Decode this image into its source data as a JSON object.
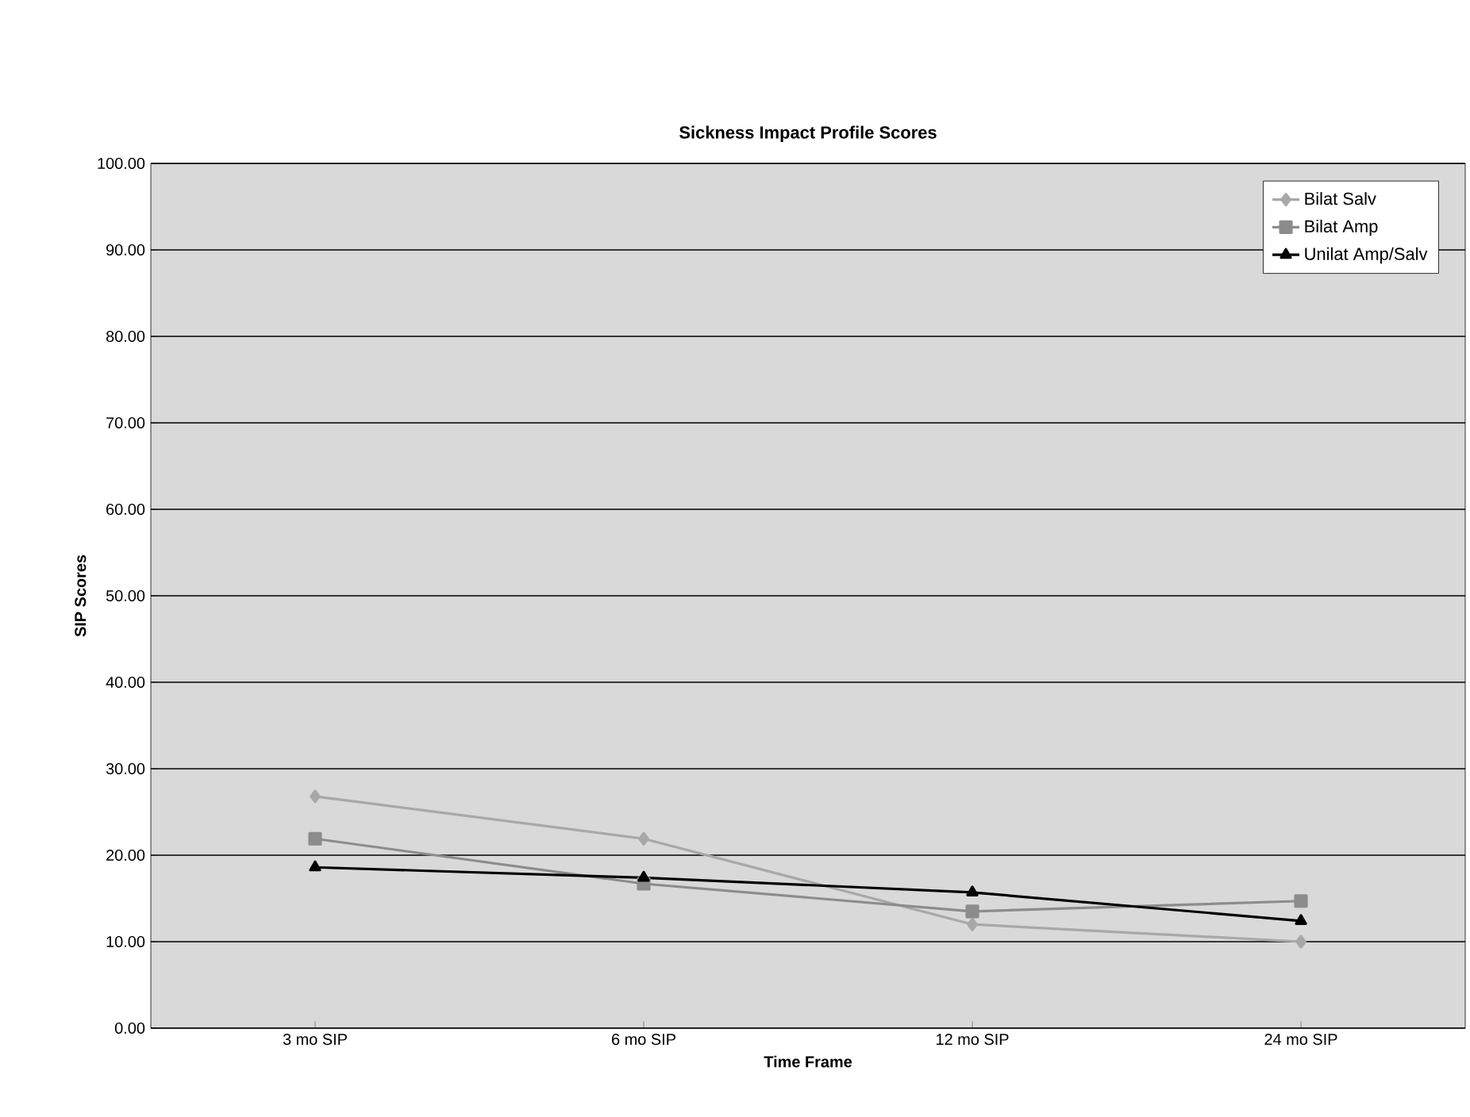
{
  "chart_data": {
    "type": "line",
    "title": "Sickness Impact Profile Scores",
    "xlabel": "Time Frame",
    "ylabel": "SIP Scores",
    "categories": [
      "3 mo SIP",
      "6 mo SIP",
      "12 mo SIP",
      "24 mo SIP"
    ],
    "series": [
      {
        "name": "Bilat Salv",
        "color": "#a8a8a8",
        "marker": "diamond",
        "values": [
          26.8,
          21.9,
          12.0,
          10.0
        ]
      },
      {
        "name": "Bilat Amp",
        "color": "#8c8c8c",
        "marker": "square",
        "values": [
          21.9,
          16.7,
          13.5,
          14.7
        ]
      },
      {
        "name": "Unilat Amp/Salv",
        "color": "#000000",
        "marker": "triangle",
        "values": [
          18.6,
          17.4,
          15.7,
          12.4
        ]
      }
    ],
    "ylim": [
      0,
      100
    ],
    "yticks": [
      {
        "value": 0,
        "label": "0.00"
      },
      {
        "value": 10,
        "label": "10.00"
      },
      {
        "value": 20,
        "label": "20.00"
      },
      {
        "value": 30,
        "label": "30.00"
      },
      {
        "value": 40,
        "label": "40.00"
      },
      {
        "value": 50,
        "label": "50.00"
      },
      {
        "value": 60,
        "label": "60.00"
      },
      {
        "value": 70,
        "label": "70.00"
      },
      {
        "value": 80,
        "label": "80.00"
      },
      {
        "value": 90,
        "label": "90.00"
      },
      {
        "value": 100,
        "label": "100.00"
      }
    ],
    "grid": "y",
    "legend": "top right",
    "line_style": "solid"
  }
}
